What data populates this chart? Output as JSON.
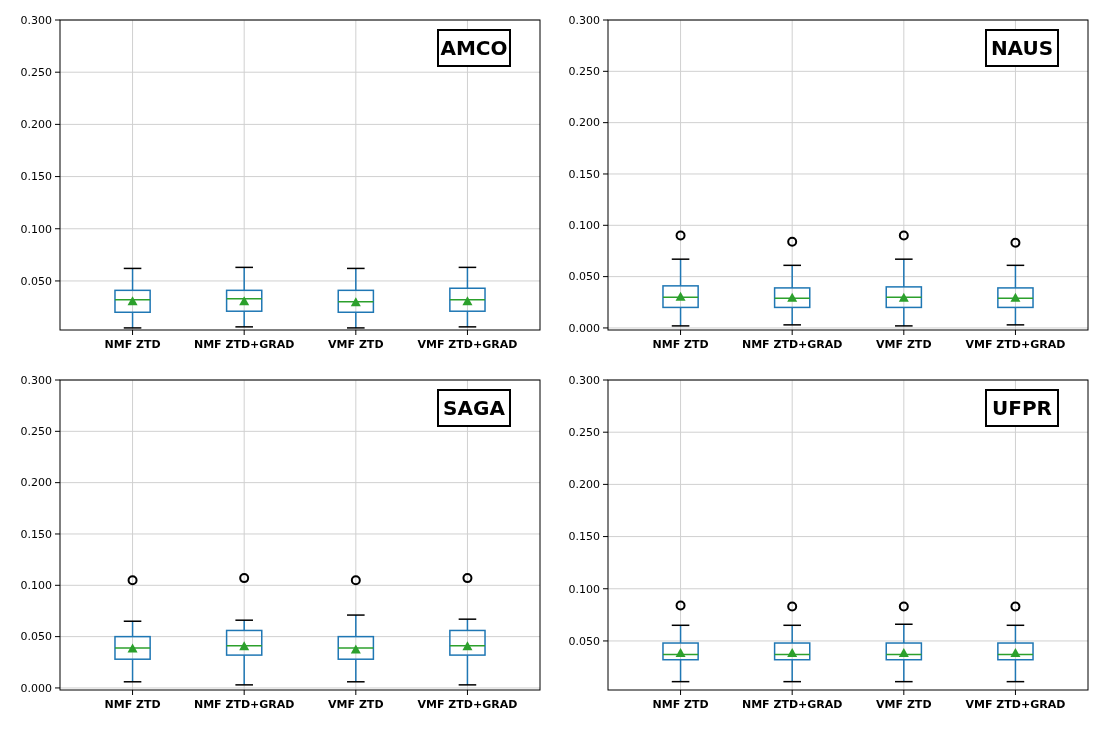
{
  "chart_data": [
    {
      "type": "box",
      "title": "AMCO",
      "categories": [
        "NMF ZTD",
        "NMF ZTD+GRAD",
        "VMF ZTD",
        "VMF ZTD+GRAD"
      ],
      "ylim": [
        0.003,
        0.3
      ],
      "yticks": [
        {
          "value": 0.05,
          "label": "0.050"
        },
        {
          "value": 0.1,
          "label": "0.100"
        },
        {
          "value": 0.15,
          "label": "0.150"
        },
        {
          "value": 0.2,
          "label": "0.200"
        },
        {
          "value": 0.25,
          "label": "0.250"
        },
        {
          "value": 0.3,
          "label": "0.300"
        }
      ],
      "grid": true,
      "color": "#1f77b4",
      "boxes": [
        {
          "low": 0.005,
          "q1": 0.02,
          "median": 0.032,
          "q3": 0.041,
          "high": 0.062,
          "mean": 0.031
        },
        {
          "low": 0.006,
          "q1": 0.021,
          "median": 0.033,
          "q3": 0.041,
          "high": 0.063,
          "mean": 0.031
        },
        {
          "low": 0.005,
          "q1": 0.02,
          "median": 0.03,
          "q3": 0.041,
          "high": 0.062,
          "mean": 0.03
        },
        {
          "low": 0.006,
          "q1": 0.021,
          "median": 0.032,
          "q3": 0.043,
          "high": 0.063,
          "mean": 0.031
        }
      ]
    },
    {
      "type": "box",
      "title": "NAUS",
      "categories": [
        "NMF ZTD",
        "NMF ZTD+GRAD",
        "VMF ZTD",
        "VMF ZTD+GRAD"
      ],
      "ylim": [
        -0.002,
        0.3
      ],
      "yticks": [
        {
          "value": 0,
          "label": "0.000"
        },
        {
          "value": 0.05,
          "label": "0.050"
        },
        {
          "value": 0.1,
          "label": "0.100"
        },
        {
          "value": 0.15,
          "label": "0.150"
        },
        {
          "value": 0.2,
          "label": "0.200"
        },
        {
          "value": 0.25,
          "label": "0.250"
        },
        {
          "value": 0.3,
          "label": "0.300"
        }
      ],
      "grid": true,
      "color": "#1f77b4",
      "boxes": [
        {
          "low": 0.002,
          "q1": 0.02,
          "median": 0.03,
          "q3": 0.041,
          "high": 0.067,
          "mean": 0.031,
          "outliers": [
            0.09
          ]
        },
        {
          "low": 0.003,
          "q1": 0.02,
          "median": 0.029,
          "q3": 0.039,
          "high": 0.061,
          "mean": 0.03,
          "outliers": [
            0.084
          ]
        },
        {
          "low": 0.002,
          "q1": 0.02,
          "median": 0.03,
          "q3": 0.04,
          "high": 0.067,
          "mean": 0.03,
          "outliers": [
            0.09
          ]
        },
        {
          "low": 0.003,
          "q1": 0.02,
          "median": 0.029,
          "q3": 0.039,
          "high": 0.061,
          "mean": 0.03,
          "outliers": [
            0.083
          ]
        }
      ]
    },
    {
      "type": "box",
      "title": "SAGA",
      "categories": [
        "NMF ZTD",
        "NMF ZTD+GRAD",
        "VMF ZTD",
        "VMF ZTD+GRAD"
      ],
      "ylim": [
        -0.002,
        0.3
      ],
      "yticks": [
        {
          "value": 0,
          "label": "0.000"
        },
        {
          "value": 0.05,
          "label": "0.050"
        },
        {
          "value": 0.1,
          "label": "0.100"
        },
        {
          "value": 0.15,
          "label": "0.150"
        },
        {
          "value": 0.2,
          "label": "0.200"
        },
        {
          "value": 0.25,
          "label": "0.250"
        },
        {
          "value": 0.3,
          "label": "0.300"
        }
      ],
      "grid": true,
      "color": "#1f77b4",
      "boxes": [
        {
          "low": 0.006,
          "q1": 0.028,
          "median": 0.039,
          "q3": 0.05,
          "high": 0.065,
          "mean": 0.039,
          "outliers": [
            0.105
          ]
        },
        {
          "low": 0.003,
          "q1": 0.032,
          "median": 0.041,
          "q3": 0.056,
          "high": 0.066,
          "mean": 0.041,
          "outliers": [
            0.107
          ]
        },
        {
          "low": 0.006,
          "q1": 0.028,
          "median": 0.039,
          "q3": 0.05,
          "high": 0.071,
          "mean": 0.038,
          "outliers": [
            0.105
          ]
        },
        {
          "low": 0.003,
          "q1": 0.032,
          "median": 0.041,
          "q3": 0.056,
          "high": 0.067,
          "mean": 0.041,
          "outliers": [
            0.107
          ]
        }
      ]
    },
    {
      "type": "box",
      "title": "UFPR",
      "categories": [
        "NMF ZTD",
        "NMF ZTD+GRAD",
        "VMF ZTD",
        "VMF ZTD+GRAD"
      ],
      "ylim": [
        0.003,
        0.3
      ],
      "yticks": [
        {
          "value": 0.05,
          "label": "0.050"
        },
        {
          "value": 0.1,
          "label": "0.100"
        },
        {
          "value": 0.15,
          "label": "0.150"
        },
        {
          "value": 0.2,
          "label": "0.200"
        },
        {
          "value": 0.25,
          "label": "0.250"
        },
        {
          "value": 0.3,
          "label": "0.300"
        }
      ],
      "grid": true,
      "color": "#1f77b4",
      "boxes": [
        {
          "low": 0.011,
          "q1": 0.032,
          "median": 0.037,
          "q3": 0.048,
          "high": 0.065,
          "mean": 0.039,
          "outliers": [
            0.084
          ]
        },
        {
          "low": 0.011,
          "q1": 0.032,
          "median": 0.037,
          "q3": 0.048,
          "high": 0.065,
          "mean": 0.039,
          "outliers": [
            0.083
          ]
        },
        {
          "low": 0.011,
          "q1": 0.032,
          "median": 0.037,
          "q3": 0.048,
          "high": 0.066,
          "mean": 0.039,
          "outliers": [
            0.083
          ]
        },
        {
          "low": 0.011,
          "q1": 0.032,
          "median": 0.037,
          "q3": 0.048,
          "high": 0.065,
          "mean": 0.039,
          "outliers": [
            0.083
          ]
        }
      ]
    }
  ]
}
